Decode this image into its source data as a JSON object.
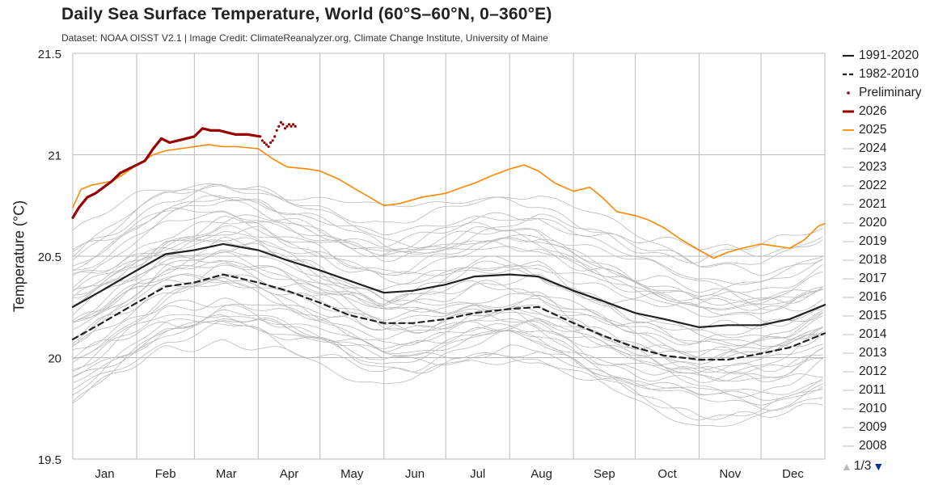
{
  "title": "Daily Sea Surface Temperature, World (60°S–60°N, 0–360°E)",
  "subtitle": "Dataset: NOAA OISST V2.1 | Image Credit: ClimateReanalyzer.org, Climate Change Institute, University of Maine",
  "colors": {
    "y2026": "#990000",
    "y2025": "#ff8800",
    "mean": "#222222",
    "history": "#bbbbbb",
    "grid": "#bbbbbb"
  },
  "legend": [
    {
      "label": "1991-2020",
      "style": "solid-black"
    },
    {
      "label": "1982-2010",
      "style": "dashed-black"
    },
    {
      "label": "Preliminary",
      "style": "dot-red"
    },
    {
      "label": "2026",
      "style": "solid-red"
    },
    {
      "label": "2025",
      "style": "solid-orange"
    },
    {
      "label": "2024",
      "style": "grey"
    },
    {
      "label": "2023",
      "style": "grey"
    },
    {
      "label": "2022",
      "style": "grey"
    },
    {
      "label": "2021",
      "style": "grey"
    },
    {
      "label": "2020",
      "style": "grey"
    },
    {
      "label": "2019",
      "style": "grey"
    },
    {
      "label": "2018",
      "style": "grey"
    },
    {
      "label": "2017",
      "style": "grey"
    },
    {
      "label": "2016",
      "style": "grey"
    },
    {
      "label": "2015",
      "style": "grey"
    },
    {
      "label": "2014",
      "style": "grey"
    },
    {
      "label": "2013",
      "style": "grey"
    },
    {
      "label": "2012",
      "style": "grey"
    },
    {
      "label": "2011",
      "style": "grey"
    },
    {
      "label": "2010",
      "style": "grey"
    },
    {
      "label": "2009",
      "style": "grey"
    },
    {
      "label": "2008",
      "style": "grey"
    }
  ],
  "pager": {
    "text": "1/3",
    "up_icon": "triangle-up",
    "down_icon": "triangle-down"
  },
  "chart_data": {
    "type": "line",
    "title": "Daily Sea Surface Temperature, World (60°S–60°N, 0–360°E)",
    "ylabel": "Temperature (°C)",
    "xlabel": "",
    "ylim": [
      19.5,
      21.5
    ],
    "yticks": [
      "21.5",
      "21",
      "20.5",
      "20",
      "19.5"
    ],
    "xlim": [
      1,
      366
    ],
    "month_labels": [
      "Jan",
      "Feb",
      "Mar",
      "Apr",
      "May",
      "Jun",
      "Jul",
      "Aug",
      "Sep",
      "Oct",
      "Nov",
      "Dec"
    ],
    "grid": true,
    "legend_position": "right",
    "series": [
      {
        "name": "1991-2020",
        "kind": "mean-solid",
        "x": [
          1,
          15,
          32,
          46,
          60,
          74,
          91,
          105,
          121,
          135,
          152,
          166,
          182,
          196,
          213,
          227,
          244,
          258,
          274,
          288,
          305,
          319,
          335,
          349,
          366
        ],
        "values": [
          20.25,
          20.33,
          20.43,
          20.51,
          20.53,
          20.56,
          20.53,
          20.48,
          20.43,
          20.38,
          20.32,
          20.33,
          20.36,
          20.4,
          20.41,
          20.4,
          20.33,
          20.28,
          20.22,
          20.19,
          20.15,
          20.16,
          20.16,
          20.19,
          20.26
        ]
      },
      {
        "name": "1982-2010",
        "kind": "mean-dashed",
        "x": [
          1,
          15,
          32,
          46,
          60,
          74,
          91,
          105,
          121,
          135,
          152,
          166,
          182,
          196,
          213,
          227,
          244,
          258,
          274,
          288,
          305,
          319,
          335,
          349,
          366
        ],
        "values": [
          20.09,
          20.17,
          20.27,
          20.35,
          20.37,
          20.41,
          20.37,
          20.33,
          20.27,
          20.21,
          20.17,
          20.17,
          20.19,
          20.22,
          20.24,
          20.25,
          20.17,
          20.11,
          20.05,
          20.01,
          19.99,
          19.99,
          20.02,
          20.05,
          20.12
        ]
      },
      {
        "name": "2025",
        "kind": "year-orange",
        "x": [
          1,
          5,
          10,
          15,
          20,
          25,
          32,
          40,
          46,
          53,
          60,
          67,
          74,
          81,
          91,
          98,
          105,
          115,
          121,
          130,
          140,
          152,
          160,
          170,
          182,
          190,
          196,
          205,
          213,
          220,
          227,
          235,
          244,
          252,
          258,
          265,
          274,
          280,
          288,
          295,
          305,
          312,
          319,
          326,
          335,
          342,
          349,
          356,
          363,
          366
        ],
        "values": [
          20.74,
          20.83,
          20.85,
          20.86,
          20.87,
          20.9,
          20.95,
          21.0,
          21.02,
          21.03,
          21.04,
          21.05,
          21.04,
          21.04,
          21.03,
          20.98,
          20.94,
          20.93,
          20.92,
          20.88,
          20.82,
          20.75,
          20.76,
          20.79,
          20.81,
          20.84,
          20.86,
          20.9,
          20.93,
          20.95,
          20.92,
          20.86,
          20.82,
          20.84,
          20.79,
          20.72,
          20.7,
          20.68,
          20.64,
          20.59,
          20.53,
          20.49,
          20.52,
          20.54,
          20.56,
          20.55,
          20.54,
          20.58,
          20.65,
          20.66
        ]
      },
      {
        "name": "2026",
        "kind": "year-red",
        "x": [
          1,
          4,
          8,
          12,
          16,
          20,
          24,
          28,
          32,
          36,
          40,
          44,
          48,
          52,
          56,
          60,
          64,
          68,
          72,
          76,
          80,
          86,
          92
        ],
        "values": [
          20.69,
          20.74,
          20.79,
          20.81,
          20.84,
          20.87,
          20.91,
          20.93,
          20.95,
          20.97,
          21.03,
          21.08,
          21.06,
          21.07,
          21.08,
          21.09,
          21.13,
          21.12,
          21.12,
          21.11,
          21.1,
          21.1,
          21.09
        ]
      },
      {
        "name": "Preliminary",
        "kind": "preliminary-dots",
        "x": [
          93,
          94,
          95,
          96,
          97,
          98,
          99,
          100,
          101,
          102,
          103,
          104,
          105,
          106,
          107,
          108,
          109
        ],
        "values": [
          21.07,
          21.06,
          21.05,
          21.04,
          21.06,
          21.07,
          21.09,
          21.12,
          21.14,
          21.16,
          21.15,
          21.13,
          21.14,
          21.15,
          21.14,
          21.15,
          21.14
        ]
      }
    ]
  }
}
